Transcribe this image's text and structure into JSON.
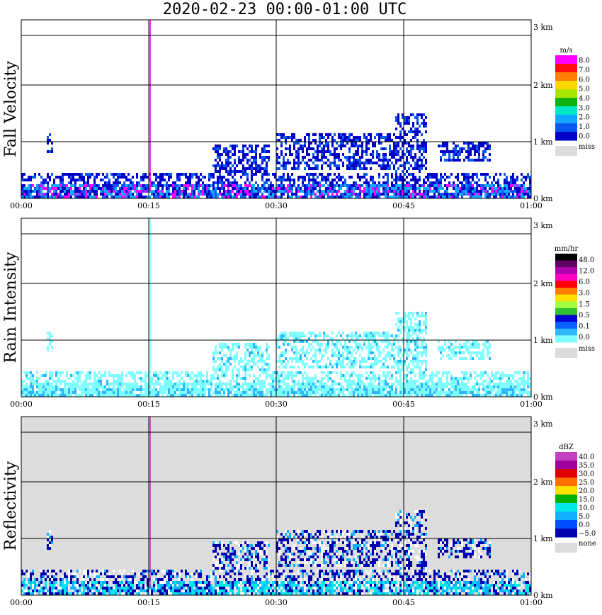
{
  "title": "2020-02-23   00:00-01:00 UTC",
  "x_ticks": [
    "00:00",
    "00:15",
    "00:30",
    "00:45",
    "01:00"
  ],
  "y_ticks": [
    "0 km",
    "1 km",
    "2 km",
    "3 km"
  ],
  "chart_data": [
    {
      "type": "heatmap",
      "ylabel": "Fall Velocity",
      "xlim": [
        "00:00",
        "01:00"
      ],
      "ylim": [
        0,
        3.1
      ],
      "grid": true,
      "background": "#ffffff",
      "legend": {
        "unit": "m/s",
        "placement": "right",
        "labels": [
          "8.0",
          "7.0",
          "6.0",
          "5.0",
          "4.0",
          "3.0",
          "2.0",
          "1.0",
          "0.0"
        ],
        "colors": [
          "#ff00ff",
          "#ff1010",
          "#ff7f00",
          "#ffd800",
          "#a8e800",
          "#10b010",
          "#00e8c8",
          "#10a8ff",
          "#0858f0",
          "#0000c8"
        ],
        "miss_label": "miss",
        "miss_color": "#dcdcdc"
      }
    },
    {
      "type": "heatmap",
      "ylabel": "Rain Intensity",
      "xlim": [
        "00:00",
        "01:00"
      ],
      "ylim": [
        0,
        3.1
      ],
      "grid": true,
      "background": "#ffffff",
      "legend": {
        "unit": "mm/hr",
        "placement": "right",
        "labels": [
          "48.0",
          "12.0",
          "6.0",
          "3.0",
          "1.5",
          "0.5",
          "0.1",
          "0.0"
        ],
        "colors": [
          "#000000",
          "#600060",
          "#b000b0",
          "#ff00c0",
          "#ff0000",
          "#ff8000",
          "#ffe000",
          "#a0ff40",
          "#30c030",
          "#0000d0",
          "#0860ff",
          "#30b8ff",
          "#80ffff"
        ],
        "miss_label": "miss",
        "miss_color": "#dcdcdc"
      }
    },
    {
      "type": "heatmap",
      "ylabel": "Reflectivity",
      "xlim": [
        "00:00",
        "01:00"
      ],
      "ylim": [
        0,
        3.1
      ],
      "grid": true,
      "background": "#dcdcdc",
      "legend": {
        "unit": "dBZ",
        "placement": "right",
        "labels": [
          "40.0",
          "35.0",
          "30.0",
          "25.0",
          "20.0",
          "15.0",
          "10.0",
          "5.0",
          "0.0",
          "−5.0"
        ],
        "colors": [
          "#c040c0",
          "#a000a0",
          "#e00000",
          "#ff7000",
          "#ffe000",
          "#00b000",
          "#00e8e8",
          "#10b0ff",
          "#0050ff",
          "#0000b0"
        ],
        "none_label": "none",
        "none_color": "#dcdcdc"
      }
    }
  ]
}
